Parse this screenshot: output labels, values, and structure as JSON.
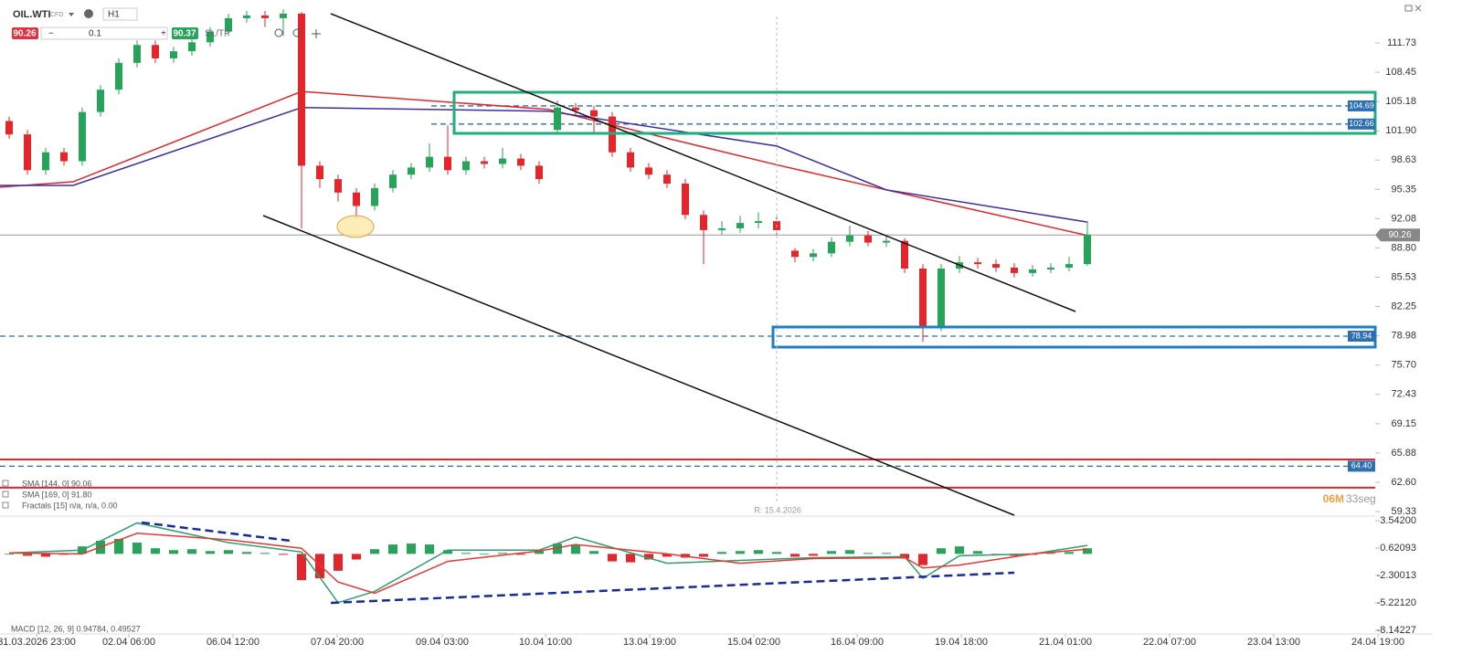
{
  "toolbar": {
    "symbol": "OIL.WTI",
    "instrument_type": "CFD",
    "timeframe": "H1",
    "sell_price": 90.26,
    "volume": 0.1,
    "buy_price": 90.37,
    "sl_tp": "SL/TP"
  },
  "timer": {
    "minutes": "06M",
    "seconds": "33seg"
  },
  "crosshair_label": "R: 15.4.2026",
  "chart_data": [
    {
      "type": "candlestick",
      "up_color": "#27a35a",
      "down_color": "#e2262b",
      "xlim": [
        -0.5,
        77.9
      ],
      "xticks": [
        {
          "value": 1.5,
          "label": "31.03.2026 23:00"
        },
        {
          "value": 6.55,
          "label": "02.04 06:00"
        },
        {
          "value": 12.25,
          "label": "06.04 12:00"
        },
        {
          "value": 17.95,
          "label": "07.04 20:00"
        },
        {
          "value": 23.7,
          "label": "09.04 03:00"
        },
        {
          "value": 29.35,
          "label": "10.04 10:00"
        },
        {
          "value": 35.05,
          "label": "13.04 19:00"
        },
        {
          "value": 40.75,
          "label": "15.04 02:00"
        },
        {
          "value": 46.4,
          "label": "16.04 09:00"
        },
        {
          "value": 52.1,
          "label": "19.04 18:00"
        },
        {
          "value": 57.8,
          "label": "21.04 01:00"
        },
        {
          "value": 63.5,
          "label": "22.04 07:00"
        },
        {
          "value": 69.2,
          "label": "23.04 13:00"
        },
        {
          "value": 74.9,
          "label": "24.04 19:00"
        }
      ],
      "ylim": [
        58.82,
        116.53
      ],
      "yticks": [
        111.73,
        108.45,
        105.18,
        {
          "value": 101.9,
          "label": "101.90"
        },
        98.63,
        95.35,
        92.08,
        {
          "value": 88.8,
          "label": "88.80"
        },
        85.53,
        82.25,
        78.98,
        {
          "value": 75.7,
          "label": "75.70"
        },
        72.43,
        69.15,
        65.88,
        {
          "value": 62.6,
          "label": "62.60"
        },
        59.33
      ],
      "ohlc": [
        [
          103,
          103.5,
          101,
          101.5
        ],
        [
          101.5,
          102,
          97,
          97.5
        ],
        [
          97.5,
          100,
          97,
          99.5
        ],
        [
          99.5,
          100,
          98,
          98.5
        ],
        [
          98.5,
          104.5,
          98,
          104
        ],
        [
          104,
          107,
          103.5,
          106.5
        ],
        [
          106.5,
          110,
          106,
          109.5
        ],
        [
          109.5,
          112,
          109,
          111.5
        ],
        [
          111.5,
          112,
          109.5,
          110
        ],
        [
          110,
          111.3,
          109.5,
          110.8
        ],
        [
          110.8,
          112.3,
          110.3,
          111.8
        ],
        [
          111.8,
          113.5,
          111.3,
          113
        ],
        [
          113,
          115,
          112.5,
          114.5
        ],
        [
          114.5,
          115.3,
          114,
          114.8
        ],
        [
          114.8,
          115.3,
          113.5,
          114.5
        ],
        [
          114.5,
          115.5,
          112.5,
          115
        ],
        [
          115,
          115.2,
          91,
          98
        ],
        [
          98,
          98.5,
          95.5,
          96.5
        ],
        [
          96.5,
          97,
          94,
          95
        ],
        [
          95,
          95.5,
          92,
          93.5
        ],
        [
          93.5,
          96,
          93,
          95.5
        ],
        [
          95.5,
          97.5,
          95,
          97
        ],
        [
          97,
          98.3,
          96.5,
          97.8
        ],
        [
          97.8,
          100.5,
          97.3,
          99
        ],
        [
          99,
          102.5,
          97,
          97.5
        ],
        [
          97.5,
          99,
          97,
          98.5
        ],
        [
          98.5,
          99,
          97.7,
          98.2
        ],
        [
          98.2,
          100,
          97.7,
          98.8
        ],
        [
          98.8,
          99.3,
          97.5,
          98
        ],
        [
          98,
          98.5,
          96,
          96.5
        ],
        [
          102,
          105.3,
          101.5,
          104.5
        ],
        [
          104.5,
          105,
          103.7,
          104.2
        ],
        [
          104.2,
          104.7,
          101.5,
          103.5
        ],
        [
          103.5,
          104,
          99,
          99.5
        ],
        [
          99.5,
          100,
          97.3,
          97.8
        ],
        [
          97.8,
          98.3,
          96.5,
          97
        ],
        [
          97,
          97.5,
          95.5,
          96
        ],
        [
          96,
          96.5,
          92,
          92.5
        ],
        [
          92.5,
          93,
          87,
          90.8
        ],
        [
          90.8,
          91.8,
          90.3,
          91
        ],
        [
          91,
          92.4,
          90.5,
          91.6
        ],
        [
          91.6,
          92.8,
          91,
          91.8
        ],
        [
          91.8,
          92.3,
          90.3,
          90.8
        ],
        [
          88.5,
          88.8,
          87.2,
          87.8
        ],
        [
          87.8,
          88.7,
          87.3,
          88.2
        ],
        [
          88.2,
          90,
          87.8,
          89.5
        ],
        [
          89.5,
          91.3,
          89,
          90.2
        ],
        [
          90.2,
          90.7,
          89,
          89.4
        ],
        [
          89.4,
          90.1,
          88.9,
          89.6
        ],
        [
          89.6,
          89.9,
          86,
          86.5
        ],
        [
          86.5,
          87,
          78.3,
          80
        ],
        [
          80,
          87,
          79.5,
          86.5
        ],
        [
          86.5,
          87.9,
          86,
          87.2
        ],
        [
          87.2,
          87.7,
          86.5,
          87
        ],
        [
          87,
          87.5,
          86.1,
          86.6
        ],
        [
          86.6,
          87.1,
          85.5,
          86
        ],
        [
          86,
          86.9,
          85.6,
          86.4
        ],
        [
          86.4,
          87.1,
          86,
          86.6
        ],
        [
          86.6,
          87.8,
          86.2,
          87
        ],
        [
          87,
          91.8,
          86.8,
          90.3
        ]
      ],
      "series": [
        {
          "name": "SMA [144, 0] 90.06",
          "color": "#e2262b",
          "x": [
            -0.5,
            3.5,
            16,
            29.5,
            42,
            49.5,
            59
          ],
          "values": [
            95.6,
            96.2,
            106.3,
            104.3,
            98.1,
            94.6,
            90.2
          ]
        },
        {
          "name": "SMA [169, 0] 91.80",
          "color": "#3a2fa8",
          "x": [
            -0.5,
            3.5,
            16,
            29.5,
            42,
            48,
            59
          ],
          "values": [
            95.8,
            95.8,
            104.5,
            104.1,
            100.2,
            95.3,
            91.7
          ]
        }
      ],
      "legend_extra": "Fractals [15] n/a, n/a, 0.00",
      "levels": [
        104.69,
        102.66,
        78.94,
        {
          "value": 64.4,
          "label": "64.40"
        }
      ],
      "level_color": "#2d6fb0",
      "support_lines": [
        65.15,
        62.0
      ],
      "support_color": "#e2262b",
      "current_price": 90.26
    },
    {
      "type": "macd",
      "title": "MACD [12, 26, 9] 0.94784, 0.49527",
      "ylim": [
        -8.73,
        3.93
      ],
      "yticks": [
        {
          "value": 3.542,
          "label": "3.54200"
        },
        0.62093,
        -2.30013,
        {
          "value": -5.2212,
          "label": "-5.22120"
        },
        -8.14227
      ],
      "histogram": [
        0,
        -0.2,
        -0.3,
        -0.1,
        0.8,
        1.4,
        1.6,
        1.2,
        0.6,
        0.4,
        0.5,
        0.3,
        0.4,
        0.2,
        0.1,
        -0.1,
        -2.8,
        -2.6,
        -1.8,
        -0.6,
        0.5,
        1,
        1.1,
        1,
        0.4,
        0.1,
        0,
        0.1,
        -0.1,
        0.3,
        1.1,
        1,
        0.3,
        -0.8,
        -0.9,
        -0.6,
        -0.3,
        -0.4,
        -0.3,
        0.2,
        0.3,
        0.4,
        0.2,
        -0.3,
        -0.2,
        0.3,
        0.4,
        0.1,
        0.1,
        -0.5,
        -1.2,
        0.6,
        0.8,
        0.3,
        -0.1,
        -0.2,
        -0.1,
        0.1,
        0.2,
        0.6
      ],
      "up_color": "#27a35a",
      "down_color": "#e2262b",
      "series": [
        {
          "color": "#2f9e6e",
          "x": [
            0,
            4,
            7,
            12,
            16,
            18,
            20,
            24,
            29,
            31,
            36,
            40,
            44,
            49,
            50,
            52,
            56,
            59
          ],
          "values": [
            0.1,
            0.4,
            3.3,
            1.2,
            0.2,
            -5.2,
            -4,
            0.4,
            0.4,
            1.8,
            -1,
            -0.7,
            -0.4,
            -0.3,
            -2.6,
            -0.2,
            0,
            0.9
          ]
        },
        {
          "color": "#e53935",
          "x": [
            0,
            4,
            7,
            12,
            16,
            18,
            20,
            24,
            29,
            31,
            36,
            40,
            44,
            49,
            50,
            52,
            56,
            59
          ],
          "values": [
            0.1,
            0,
            2.2,
            1.5,
            0.6,
            -3,
            -4.2,
            -0.8,
            0.3,
            1,
            0,
            -1,
            -0.5,
            -0.4,
            -1.5,
            -1.2,
            0,
            0.5
          ]
        }
      ]
    }
  ]
}
